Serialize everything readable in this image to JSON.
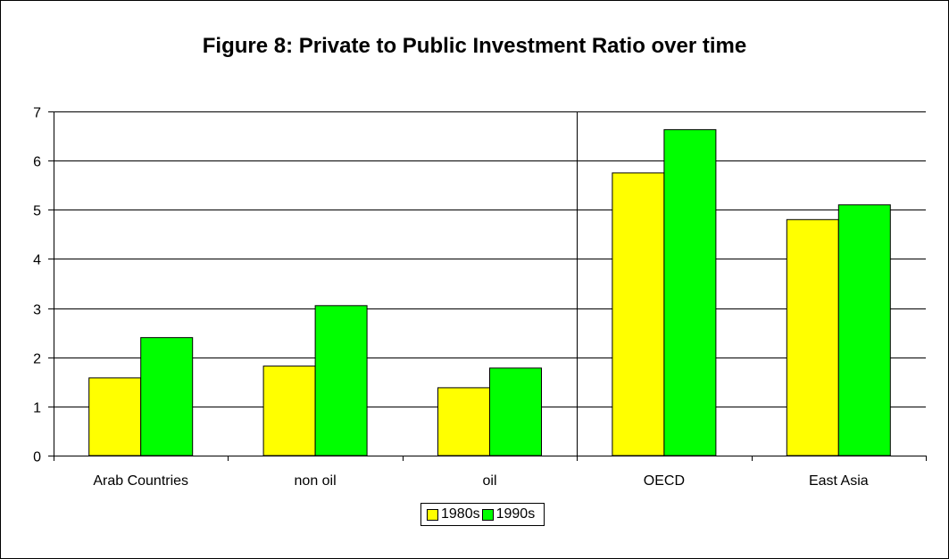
{
  "chart_data": {
    "type": "bar",
    "title": "Figure 8: Private to Public Investment Ratio over time",
    "xlabel": "",
    "ylabel": "",
    "categories": [
      "Arab Countries",
      "non oil",
      "oil",
      "OECD",
      "East Asia"
    ],
    "series": [
      {
        "name": "1980s",
        "color": "#ffff00",
        "values": [
          1.58,
          1.82,
          1.38,
          5.75,
          4.8
        ]
      },
      {
        "name": "1990s",
        "color": "#00ff00",
        "values": [
          2.4,
          3.05,
          1.78,
          6.63,
          5.1
        ]
      }
    ],
    "ylim": [
      0,
      7
    ],
    "yticks": [
      "0",
      "1",
      "2",
      "3",
      "4",
      "5",
      "6",
      "7"
    ],
    "grid": true,
    "divider_after_category": 2,
    "legend": "bottom"
  }
}
